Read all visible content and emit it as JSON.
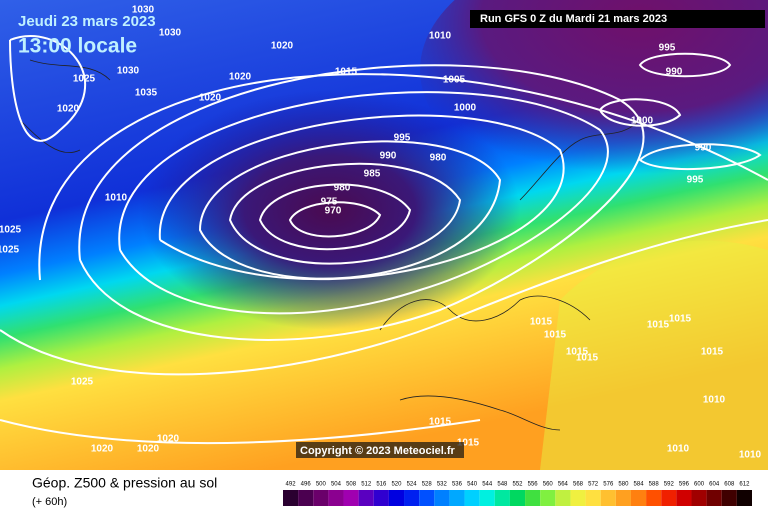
{
  "header": {
    "date": "Jeudi 23 mars 2023",
    "time": "13:00 locale",
    "run": "Run GFS 0 Z du Mardi 21 mars 2023",
    "copyright": "Copyright © 2023 Meteociel.fr"
  },
  "footer": {
    "title": "Géop. Z500 & pression au sol",
    "lead": "(+ 60h)"
  },
  "colorbar": {
    "values": [
      492,
      496,
      500,
      504,
      508,
      512,
      516,
      520,
      524,
      528,
      532,
      536,
      540,
      544,
      548,
      552,
      556,
      560,
      564,
      568,
      572,
      576,
      580,
      584,
      588,
      592,
      596,
      600,
      604,
      608,
      612
    ],
    "colors": [
      "#2a0030",
      "#4b0050",
      "#6a006a",
      "#8b0090",
      "#a000b0",
      "#5a00c0",
      "#3000d0",
      "#0000e0",
      "#0020f0",
      "#0050ff",
      "#0080ff",
      "#00a8ff",
      "#00d0ff",
      "#00f0e0",
      "#00e8a0",
      "#00d860",
      "#40e040",
      "#80f040",
      "#c0f040",
      "#f0f040",
      "#ffe040",
      "#ffc030",
      "#ffa020",
      "#ff8010",
      "#ff5000",
      "#f02000",
      "#d00000",
      "#a00000",
      "#700000",
      "#400000",
      "#100000"
    ]
  },
  "isobar_labels": [
    1030,
    1030,
    1020,
    1010,
    1015,
    1005,
    1000,
    995,
    990,
    985,
    980,
    975,
    970,
    980,
    1030,
    1025,
    1035,
    1020,
    1020,
    1020,
    1010,
    1025,
    1025,
    995,
    990,
    1000,
    990,
    995,
    1015,
    1015,
    1015,
    1015,
    1015,
    1015,
    1015,
    1010,
    1025,
    1020,
    1020,
    1020,
    1015,
    1015,
    1010,
    1010
  ]
}
